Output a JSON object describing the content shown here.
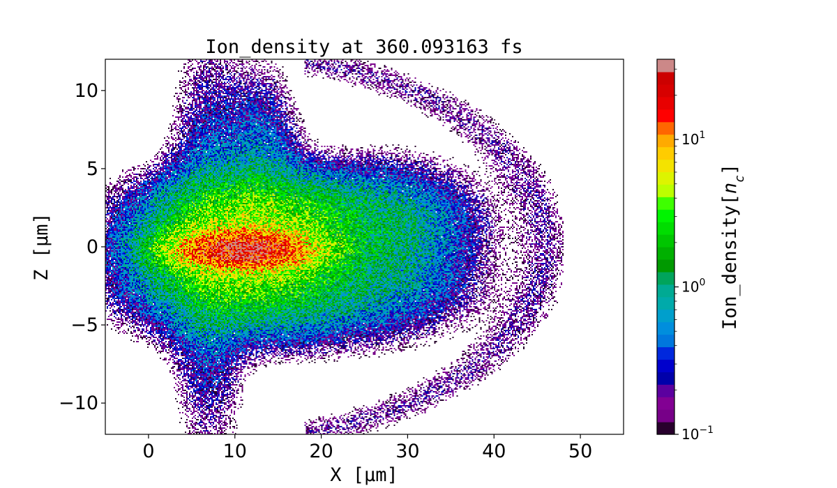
{
  "chart_data": {
    "type": "heatmap",
    "title": "Ion_density at 360.093163 fs",
    "xlabel": "X [μm]",
    "ylabel": "Z [μm]",
    "xlim": [
      -5,
      55
    ],
    "ylim": [
      -12,
      12
    ],
    "x_ticks": [
      0,
      10,
      20,
      30,
      40,
      50
    ],
    "y_ticks": [
      -10,
      -5,
      0,
      5,
      10
    ],
    "x_tick_labels": [
      "0",
      "10",
      "20",
      "30",
      "40",
      "50"
    ],
    "y_tick_labels": [
      "−10",
      "−5",
      "0",
      "5",
      "10"
    ],
    "colorbar": {
      "label": "Ion_density[n_c]",
      "label_prefix": "Ion_density[",
      "label_var": "n",
      "label_sub": "c",
      "label_suffix": "]",
      "scale": "log",
      "range": [
        0.1,
        35
      ],
      "ticks": [
        {
          "value": 0.1,
          "base": "10",
          "exp": "−1"
        },
        {
          "value": 1,
          "base": "10",
          "exp": "0"
        },
        {
          "value": 10,
          "base": "10",
          "exp": "1"
        }
      ],
      "colormap": "nipy_spectral"
    },
    "structures": [
      {
        "type": "core",
        "label": "dense filament",
        "center": [
          11,
          -0.2
        ],
        "semi_axes": [
          8,
          1.2
        ],
        "peak_density": 20
      },
      {
        "type": "core",
        "label": "compressed target",
        "center": [
          11,
          0
        ],
        "semi_axes": [
          11,
          4
        ],
        "peak_density": 4
      },
      {
        "type": "lobe",
        "label": "upper expansion",
        "center": [
          17,
          2
        ],
        "semi_axes": [
          16,
          3
        ],
        "peak_density": 1.2
      },
      {
        "type": "lobe",
        "label": "lower expansion",
        "center": [
          16,
          -2.5
        ],
        "semi_axes": [
          17,
          3.5
        ],
        "peak_density": 1.1
      },
      {
        "type": "jet",
        "label": "forward jet",
        "center": [
          29,
          0.5
        ],
        "semi_axes": [
          9,
          4.5
        ],
        "peak_density": 0.6
      },
      {
        "type": "column",
        "label": "vertical column",
        "center": [
          7,
          0
        ],
        "semi_axes": [
          4.5,
          12
        ],
        "peak_density": 0.5
      },
      {
        "type": "blob",
        "label": "upper blob",
        "center": [
          13,
          5
        ],
        "semi_axes": [
          4.5,
          6
        ],
        "peak_density": 0.5
      },
      {
        "type": "shell",
        "label": "outer shell",
        "center": [
          8,
          0
        ],
        "semi_axes": [
          40,
          13
        ],
        "peak_density": 0.12
      }
    ]
  }
}
